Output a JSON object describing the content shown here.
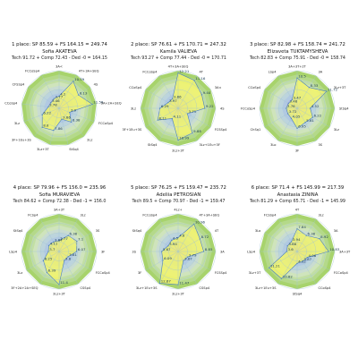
{
  "chart_data": [
    {
      "type": "radar",
      "title": "1 place: SP 85.59 + FS 164.15 = 249.74",
      "skater": "Sofia AKATEVA",
      "subtitle": "Tech 91.72 + Comp 72.43 - Ded -0 = 164.15",
      "axes": [
        "3A+",
        "4T+3A+SEQ",
        "4S",
        "3A+2A+SEQ",
        "FCCoSp4",
        "3Lz",
        "StSq4",
        "3Lz+3T",
        "3F+1Eu+3S",
        "3Lz",
        "CCoSp4",
        "CFSSp4",
        "FCCoSp4"
      ],
      "labels": [
        "3A<",
        "4T+3A+SEQ",
        "4S",
        "3A+2A+SEQ",
        "FCCoSp4",
        "3Lz",
        "StSq4",
        "3Lz+3T",
        "3F+1Eu+3S",
        "3Lz",
        "CCoSp4",
        "CFSSp4",
        "FCCoSp4"
      ],
      "values": [
        4.2,
        10.59,
        8.13,
        11.56,
        3.9,
        6.38,
        3.86,
        7.86,
        8.8,
        6.22,
        3.78,
        3.46,
        3.77
      ],
      "value_labels": [
        "4.2",
        "10.59",
        "8.13",
        "11.56",
        "3.9",
        "6.38",
        "3.86",
        "7.86",
        "8.8",
        "6.22",
        "3.78",
        "3.46",
        "3.77"
      ]
    },
    {
      "type": "radar",
      "title": "2 place: SP 76.61 + FS 170.71 = 247.32",
      "skater": "Kamila VALIEVA",
      "subtitle": "Tech 93.27 + Comp 77.44 - Ded -0 = 170.71",
      "axes": [
        "4T+3A+SEQ",
        "4T",
        "3A+",
        "4S",
        "FCSSp4",
        "3Lz+1Eu+3F",
        "3Lz+3T",
        "StSq4",
        "3F+1Eu+3S",
        "3Lz",
        "CCoSp4",
        "FCCoSp4"
      ],
      "labels": [
        "4T+3A+SEQ",
        "4T",
        "3A<",
        "4S",
        "FCSSp4",
        "3Lz+1Eu+3F",
        "3Lz+3T",
        "StSq4",
        "3F+1Eu+3S",
        "3Lz",
        "CCoSp4",
        "FCCoSp4"
      ],
      "values": [
        12.21,
        11.16,
        9.44,
        9.22,
        3.71,
        9.88,
        10.99,
        4.11,
        8.11,
        6.29,
        3.97,
        3.86
      ],
      "value_labels": [
        "12.21",
        "11.16",
        "9.44",
        "9.22",
        "3.71",
        "9.88",
        "10.99",
        "4.11",
        "8.11",
        "6.29",
        "3.97",
        "3.86"
      ]
    },
    {
      "type": "radar",
      "title": "3 place: SP 82.98 + FS 158.74 = 241.72",
      "skater": "Elizaveta TUKTAMYSHEVA",
      "subtitle": "Tech 82.83 + Comp 75.91 - Ded -0 = 158.74",
      "axes": [
        "3A+3T+2T",
        "3A",
        "3Lz+3T",
        "StSq4",
        "3Lz",
        "3S",
        "3F",
        "3Lo",
        "ChSq1",
        "FCCoSp4",
        "CCoSp4",
        "LSp4"
      ],
      "labels": [
        "3A+3T+2T",
        "3A",
        "3Lz+3T",
        "StSq4",
        "3Lz",
        "3S",
        "3F",
        "3Lo",
        "ChSq1",
        "FCCoSp4",
        "CCoSp4",
        "LSp4"
      ],
      "values": [
        10.5,
        8.33,
        11.72,
        4.52,
        6.22,
        5.61,
        6.95,
        4.05,
        3.72,
        3.78,
        3.46,
        3.47
      ],
      "value_labels": [
        "10.5",
        "8.33",
        "11.72",
        "4.52",
        "6.22",
        "5.61",
        "6.95",
        "4.05",
        "3.72",
        "3.78",
        "3.46",
        "3.47"
      ]
    },
    {
      "type": "radar",
      "title": "4 place: SP 79.96 + FS 156.0 = 235.96",
      "skater": "Sofia MURAVIEVA",
      "subtitle": "Tech 84.62 + Comp 72.38 - Ded -1 = 156.0",
      "axes": [
        "3A+3T",
        "3Lz",
        "3S",
        "3F",
        "FCCoSp4",
        "CSSp4",
        "3Lz+3T",
        "3F+2A+2A+SEQ",
        "3Lz",
        "LSp4",
        "StSq4",
        "FCSp4"
      ],
      "labels": [
        "3A+3T",
        "3Lz",
        "3S",
        "3F",
        "FCCoSp4",
        "CSSp4",
        "3Lz+3T",
        "3F+2A+2A+SEQ",
        "3Lz",
        "LSp4",
        "StSq4",
        "FCSp4"
      ],
      "values": [
        3.77,
        6.38,
        7.1,
        6.07,
        3.61,
        3.6,
        11.4,
        8.39,
        6.25,
        3.7,
        4.11,
        3.84
      ],
      "value_labels": [
        "3.77",
        "6.38",
        "7.1",
        "6.07",
        "3.61",
        "3.6",
        "11.4",
        "8.39",
        "6.25",
        "3.7",
        "4.11",
        "3.84"
      ]
    },
    {
      "type": "radar",
      "title": "5 place: SP 76.25 + FS 159.47 = 235.72",
      "skater": "Adeliia PETROSIAN",
      "subtitle": "Tech 89.5 + Comp 70.97 - Ded -1 = 159.47",
      "axes": [
        "4Lz+",
        "4T+3A+SEQ",
        "4T",
        "3A",
        "FCSSp4",
        "CSSp4",
        "3Lz+3T",
        "3Lz+1Eu+3S",
        "3F",
        "3S",
        "StSq4",
        "FCCoSp4"
      ],
      "labels": [
        "4Lz+",
        "4T+3A+SEQ",
        "4T",
        "3A",
        "FCSSp4",
        "CSSp4",
        "3Lz+3T",
        "3Lz+1Eu+3S",
        "3F",
        "3S",
        "StSq4",
        "FCCoSp4"
      ],
      "values": [
        4.8,
        10.96,
        8.72,
        8.85,
        3.79,
        3.67,
        11.47,
        12.67,
        6.09,
        5.67,
        3.94,
        4.5
      ],
      "value_labels": [
        "4.8",
        "10.96",
        "8.72",
        "8.85",
        "3.79",
        "3.67",
        "11.47",
        "12.67",
        "6.09",
        "5.67",
        "3.94",
        "4.5"
      ]
    },
    {
      "type": "radar",
      "title": "6 place: SP 71.4 + FS 145.99 = 217.39",
      "skater": "Anastasia ZININA",
      "subtitle": "Tech 81.29 + Comp 65.71 - Ded -1 = 145.99",
      "axes": [
        "4T",
        "3Lz",
        "3A",
        "3A+3T",
        "FCCoSp4",
        "CCoSp4",
        "StSq4",
        "3Lz+1Eu+3S",
        "3Lz+3T",
        "LSp4",
        "3Lo",
        "FCSSp4"
      ],
      "labels": [
        "4T",
        "3Lz",
        "3A",
        "3A+3T",
        "FCCoSp4",
        "CCoSp4",
        "StSq4",
        "3Lz+1Eu+3S",
        "3Lz+3T",
        "LSp4",
        "3Lo",
        "FCSSp4"
      ],
      "values": [
        7.84,
        6.38,
        8.92,
        10.83,
        4.06,
        3.87,
        4.12,
        10.82,
        11.21,
        3.6,
        3.86,
        3.94
      ],
      "value_labels": [
        "7.84",
        "6.38",
        "8.92",
        "10.83",
        "4.06",
        "3.87",
        "4.12",
        "10.82",
        "11.21",
        "3.6",
        "3.86",
        "3.94"
      ]
    }
  ],
  "style": {
    "ring_colors": [
      "#a7d36c",
      "#b4d98a",
      "#c2dfa4",
      "#cfe4bc",
      "#c9dcd2",
      "#bcd4dd",
      "#b1c9e2",
      "#b7bde2",
      "#c2b4dc",
      "#caa9d7"
    ],
    "value_fill": "#f2f46a",
    "value_stroke": "#4a7fc1",
    "grid_color": "#9fc3d6"
  }
}
